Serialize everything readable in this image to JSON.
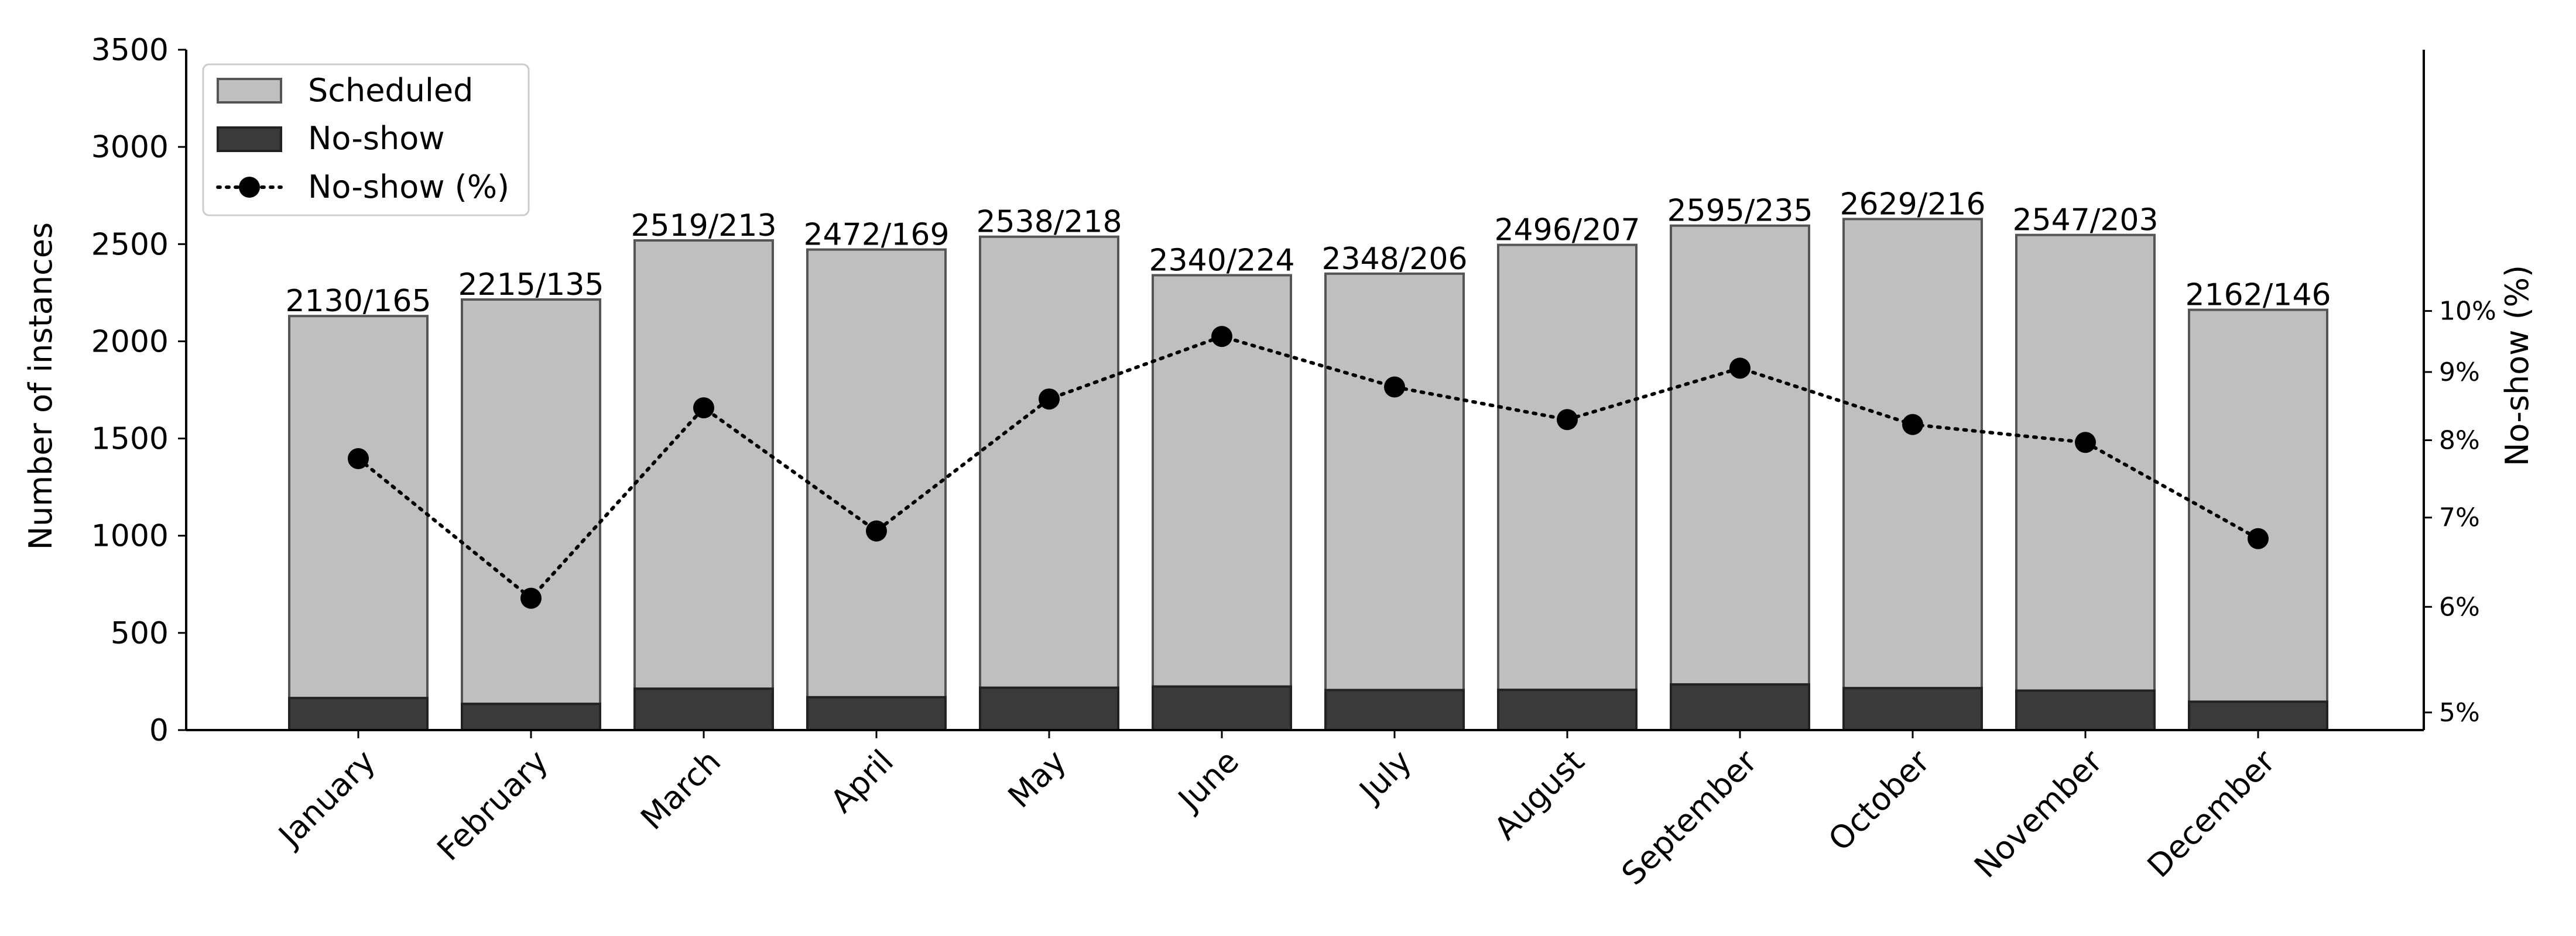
{
  "chart_data": {
    "type": "bar",
    "categories": [
      "January",
      "February",
      "March",
      "April",
      "May",
      "June",
      "July",
      "August",
      "September",
      "October",
      "November",
      "December"
    ],
    "series": [
      {
        "name": "Scheduled",
        "values": [
          2130,
          2215,
          2519,
          2472,
          2538,
          2340,
          2348,
          2496,
          2595,
          2629,
          2547,
          2162
        ],
        "color": "#bfbfbf",
        "edge": "#555555"
      },
      {
        "name": "No-show",
        "values": [
          165,
          135,
          213,
          169,
          218,
          224,
          206,
          207,
          235,
          216,
          203,
          146
        ],
        "color": "#3a3a3a",
        "edge": "#222222"
      },
      {
        "name": "No-show (%)",
        "values": [
          7.75,
          6.09,
          8.46,
          6.84,
          8.59,
          9.57,
          8.77,
          8.29,
          9.06,
          8.22,
          7.97,
          6.75
        ],
        "axis": "right",
        "style": "dotted line with circle markers",
        "color": "#000000"
      }
    ],
    "bar_labels": [
      "2130/165",
      "2215/135",
      "2519/213",
      "2472/169",
      "2538/218",
      "2340/224",
      "2348/206",
      "2496/207",
      "2595/235",
      "2629/216",
      "2547/203",
      "2162/146"
    ],
    "ylabel": "Number of instances",
    "ylabel_right": "No-show (%)",
    "ylim": [
      0,
      3500
    ],
    "yticks": [
      "0",
      "500",
      "1000",
      "1500",
      "2000",
      "2500",
      "3000",
      "3500"
    ],
    "y2_scale": "log",
    "y2lim": [
      4.85,
      15.7
    ],
    "y2ticks": [
      {
        "value": 5,
        "label": "5%"
      },
      {
        "value": 6,
        "label": "6%"
      },
      {
        "value": 7,
        "label": "7%"
      },
      {
        "value": 8,
        "label": "8%"
      },
      {
        "value": 9,
        "label": "9%"
      },
      {
        "value": 10,
        "label": "10%"
      }
    ],
    "legend_position": "top-left",
    "grid": false
  }
}
